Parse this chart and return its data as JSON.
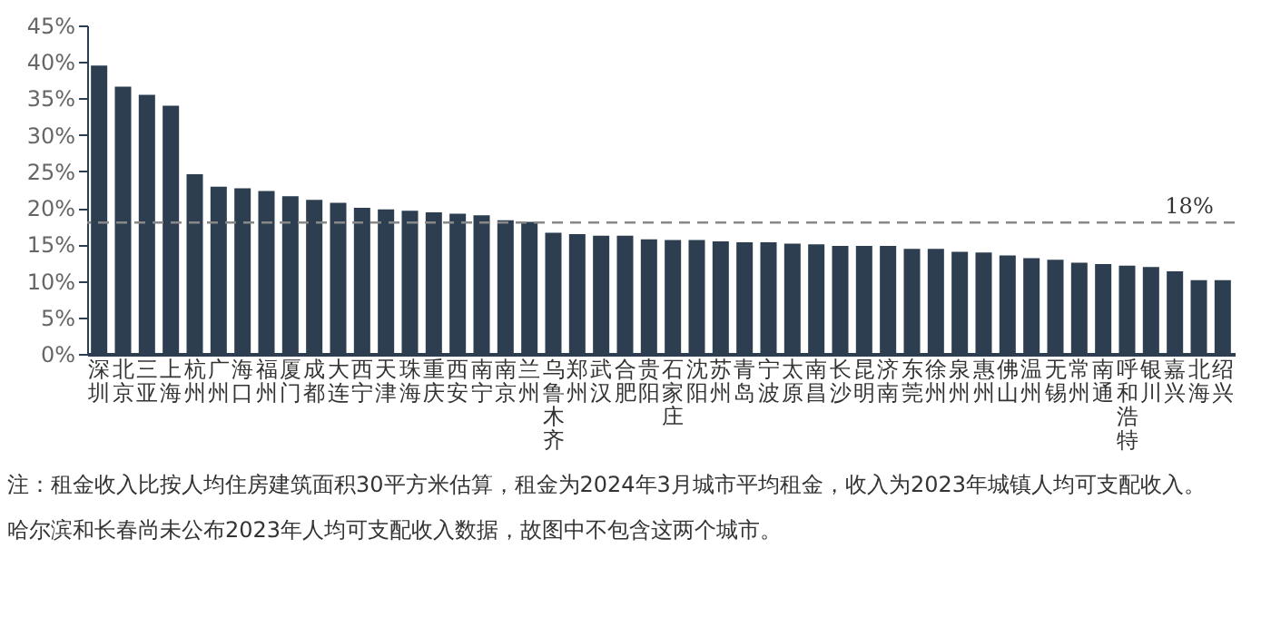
{
  "chart_data": {
    "type": "bar",
    "categories": [
      "深圳",
      "北京",
      "三亚",
      "上海",
      "杭州",
      "广州",
      "海口",
      "福州",
      "厦门",
      "成都",
      "大连",
      "西宁",
      "天津",
      "珠海",
      "重庆",
      "西安",
      "南宁",
      "南京",
      "兰州",
      "乌鲁木齐",
      "郑州",
      "武汉",
      "合肥",
      "贵阳",
      "石家庄",
      "沈阳",
      "苏州",
      "青岛",
      "宁波",
      "太原",
      "南昌",
      "长沙",
      "昆明",
      "济南",
      "东莞",
      "徐州",
      "泉州",
      "惠州",
      "佛山",
      "温州",
      "无锡",
      "常州",
      "南通",
      "呼和浩特",
      "银川",
      "嘉兴",
      "北海",
      "绍兴"
    ],
    "values": [
      39.5,
      36.6,
      35.5,
      34.0,
      24.6,
      22.9,
      22.7,
      22.3,
      21.6,
      21.1,
      20.7,
      20.0,
      19.8,
      19.6,
      19.4,
      19.2,
      19.0,
      18.3,
      18.1,
      16.6,
      16.4,
      16.2,
      16.2,
      15.7,
      15.6,
      15.6,
      15.4,
      15.3,
      15.3,
      15.1,
      15.0,
      14.8,
      14.8,
      14.8,
      14.4,
      14.4,
      14.0,
      13.9,
      13.5,
      13.1,
      12.9,
      12.5,
      12.3,
      12.1,
      11.9,
      11.3,
      10.1,
      10.1
    ],
    "color": "#2c3e4f",
    "ylim": [
      0,
      45
    ],
    "yticks": [
      {
        "value": 0,
        "label": "0%"
      },
      {
        "value": 5,
        "label": "5%"
      },
      {
        "value": 10,
        "label": "10%"
      },
      {
        "value": 15,
        "label": "15%"
      },
      {
        "value": 20,
        "label": "20%"
      },
      {
        "value": 25,
        "label": "25%"
      },
      {
        "value": 30,
        "label": "30%"
      },
      {
        "value": 35,
        "label": "35%"
      },
      {
        "value": 40,
        "label": "40%"
      },
      {
        "value": 45,
        "label": "45%"
      }
    ],
    "grid": false,
    "ref_lines": [
      {
        "axis": "y",
        "value": 18,
        "label": "18%",
        "color": "#888888",
        "line_style": "dashed"
      }
    ],
    "annotations": [
      "注：租金收入比按人均住房建筑面积30平方米估算，租金为2024年3月城市平均租金，收入为2023年城镇人均可支配收入。",
      "哈尔滨和长春尚未公布2023年人均可支配收入数据，故图中不包含这两个城市。"
    ]
  }
}
